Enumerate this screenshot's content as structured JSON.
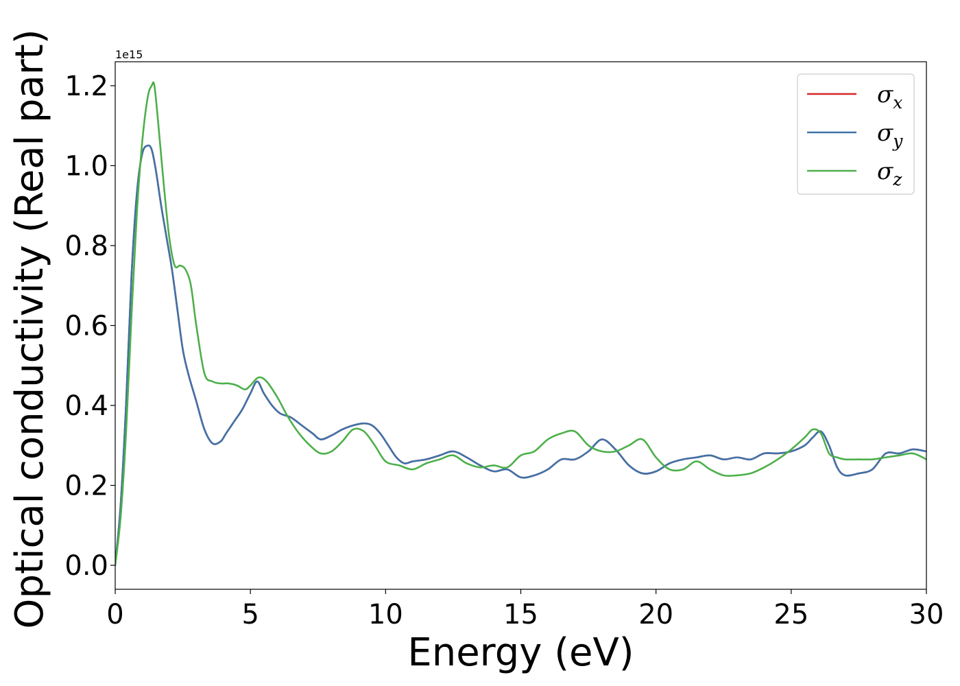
{
  "chart_data": {
    "type": "line",
    "xlabel": "Energy (eV)",
    "ylabel": "Optical conductivity (Real part)",
    "y_offset_label": "1e15",
    "y_scale": 1000000000000000.0,
    "xlim": [
      0,
      30
    ],
    "ylim": [
      -0.06,
      1.26
    ],
    "xticks": [
      0,
      5,
      10,
      15,
      20,
      25,
      30
    ],
    "xtick_labels": [
      "0",
      "5",
      "10",
      "15",
      "20",
      "25",
      "30"
    ],
    "yticks": [
      0.0,
      0.2,
      0.4,
      0.6,
      0.8,
      1.0,
      1.2
    ],
    "ytick_labels": [
      "0.0",
      "0.2",
      "0.4",
      "0.6",
      "0.8",
      "1.0",
      "1.2"
    ],
    "grid": false,
    "legend_position": "top-right",
    "series": [
      {
        "name": "σx",
        "legend_main": "σ",
        "legend_sub": "x",
        "color": "#d62728",
        "x": [
          0,
          0.2,
          0.4,
          0.6,
          0.8,
          1.0,
          1.2,
          1.35,
          1.5,
          1.7,
          1.9,
          2.1,
          2.3,
          2.5,
          2.7,
          3.0,
          3.3,
          3.6,
          3.9,
          4.1,
          4.4,
          4.7,
          5.0,
          5.25,
          5.5,
          5.8,
          6.1,
          6.5,
          6.9,
          7.3,
          7.6,
          8.0,
          8.4,
          8.8,
          9.2,
          9.5,
          9.8,
          10.1,
          10.4,
          10.7,
          11.0,
          11.5,
          12.0,
          12.5,
          13.0,
          13.5,
          14.0,
          14.5,
          15.0,
          15.5,
          16.0,
          16.5,
          17.0,
          17.5,
          18.0,
          18.5,
          19.0,
          19.5,
          20.0,
          20.5,
          21.0,
          21.5,
          22.0,
          22.5,
          23.0,
          23.5,
          24.0,
          24.5,
          25.0,
          25.5,
          25.8,
          26.1,
          26.4,
          26.7,
          27.0,
          27.5,
          28.0,
          28.5,
          29.0,
          29.5,
          30.0
        ],
        "y": [
          0.0,
          0.15,
          0.4,
          0.72,
          0.93,
          1.03,
          1.05,
          1.04,
          0.99,
          0.9,
          0.82,
          0.74,
          0.64,
          0.54,
          0.48,
          0.41,
          0.34,
          0.305,
          0.31,
          0.33,
          0.36,
          0.39,
          0.43,
          0.46,
          0.43,
          0.4,
          0.38,
          0.37,
          0.35,
          0.33,
          0.315,
          0.325,
          0.34,
          0.35,
          0.355,
          0.35,
          0.33,
          0.3,
          0.27,
          0.255,
          0.26,
          0.265,
          0.275,
          0.285,
          0.27,
          0.25,
          0.235,
          0.24,
          0.22,
          0.225,
          0.24,
          0.265,
          0.265,
          0.285,
          0.315,
          0.29,
          0.25,
          0.23,
          0.235,
          0.255,
          0.265,
          0.27,
          0.275,
          0.265,
          0.27,
          0.265,
          0.28,
          0.28,
          0.285,
          0.3,
          0.32,
          0.335,
          0.3,
          0.245,
          0.225,
          0.23,
          0.24,
          0.28,
          0.28,
          0.29,
          0.285
        ]
      },
      {
        "name": "σy",
        "legend_main": "σ",
        "legend_sub": "y",
        "color": "#3f72a8",
        "x": [
          0,
          0.2,
          0.4,
          0.6,
          0.8,
          1.0,
          1.2,
          1.35,
          1.5,
          1.7,
          1.9,
          2.1,
          2.3,
          2.5,
          2.7,
          3.0,
          3.3,
          3.6,
          3.9,
          4.1,
          4.4,
          4.7,
          5.0,
          5.25,
          5.5,
          5.8,
          6.1,
          6.5,
          6.9,
          7.3,
          7.6,
          8.0,
          8.4,
          8.8,
          9.2,
          9.5,
          9.8,
          10.1,
          10.4,
          10.7,
          11.0,
          11.5,
          12.0,
          12.5,
          13.0,
          13.5,
          14.0,
          14.5,
          15.0,
          15.5,
          16.0,
          16.5,
          17.0,
          17.5,
          18.0,
          18.5,
          19.0,
          19.5,
          20.0,
          20.5,
          21.0,
          21.5,
          22.0,
          22.5,
          23.0,
          23.5,
          24.0,
          24.5,
          25.0,
          25.5,
          25.8,
          26.1,
          26.4,
          26.7,
          27.0,
          27.5,
          28.0,
          28.5,
          29.0,
          29.5,
          30.0
        ],
        "y": [
          0.0,
          0.15,
          0.4,
          0.72,
          0.93,
          1.03,
          1.05,
          1.04,
          0.99,
          0.9,
          0.82,
          0.74,
          0.64,
          0.54,
          0.48,
          0.41,
          0.34,
          0.305,
          0.31,
          0.33,
          0.36,
          0.39,
          0.43,
          0.46,
          0.43,
          0.4,
          0.38,
          0.37,
          0.35,
          0.33,
          0.315,
          0.325,
          0.34,
          0.35,
          0.355,
          0.35,
          0.33,
          0.3,
          0.27,
          0.255,
          0.26,
          0.265,
          0.275,
          0.285,
          0.27,
          0.25,
          0.235,
          0.24,
          0.22,
          0.225,
          0.24,
          0.265,
          0.265,
          0.285,
          0.315,
          0.29,
          0.25,
          0.23,
          0.235,
          0.255,
          0.265,
          0.27,
          0.275,
          0.265,
          0.27,
          0.265,
          0.28,
          0.28,
          0.285,
          0.3,
          0.32,
          0.335,
          0.3,
          0.245,
          0.225,
          0.23,
          0.24,
          0.28,
          0.28,
          0.29,
          0.285
        ]
      },
      {
        "name": "σz",
        "legend_main": "σ",
        "legend_sub": "z",
        "color": "#4daf4a",
        "x": [
          0,
          0.2,
          0.4,
          0.6,
          0.8,
          1.0,
          1.2,
          1.35,
          1.45,
          1.6,
          1.8,
          2.0,
          2.2,
          2.4,
          2.6,
          2.8,
          3.0,
          3.3,
          3.6,
          3.9,
          4.2,
          4.5,
          4.8,
          5.0,
          5.3,
          5.6,
          6.0,
          6.4,
          6.8,
          7.2,
          7.6,
          8.0,
          8.4,
          8.8,
          9.2,
          9.6,
          10.0,
          10.5,
          11.0,
          11.5,
          12.0,
          12.5,
          13.0,
          13.5,
          14.0,
          14.5,
          15.0,
          15.5,
          16.0,
          16.5,
          17.0,
          17.5,
          18.0,
          18.5,
          19.0,
          19.5,
          20.0,
          20.5,
          21.0,
          21.5,
          22.0,
          22.5,
          23.0,
          23.5,
          24.0,
          24.5,
          25.0,
          25.5,
          25.8,
          26.1,
          26.4,
          26.7,
          27.0,
          27.5,
          28.0,
          28.5,
          29.0,
          29.5,
          30.0
        ],
        "y": [
          0.0,
          0.12,
          0.33,
          0.62,
          0.88,
          1.06,
          1.17,
          1.2,
          1.2,
          1.1,
          0.95,
          0.82,
          0.75,
          0.75,
          0.74,
          0.7,
          0.6,
          0.48,
          0.46,
          0.455,
          0.455,
          0.45,
          0.44,
          0.45,
          0.47,
          0.46,
          0.42,
          0.37,
          0.33,
          0.3,
          0.28,
          0.285,
          0.31,
          0.34,
          0.335,
          0.3,
          0.26,
          0.25,
          0.24,
          0.255,
          0.265,
          0.275,
          0.255,
          0.245,
          0.25,
          0.245,
          0.275,
          0.285,
          0.315,
          0.33,
          0.335,
          0.3,
          0.285,
          0.285,
          0.3,
          0.315,
          0.27,
          0.24,
          0.24,
          0.26,
          0.24,
          0.225,
          0.225,
          0.23,
          0.245,
          0.265,
          0.29,
          0.32,
          0.34,
          0.33,
          0.28,
          0.27,
          0.265,
          0.265,
          0.265,
          0.27,
          0.275,
          0.28,
          0.265
        ]
      }
    ]
  }
}
